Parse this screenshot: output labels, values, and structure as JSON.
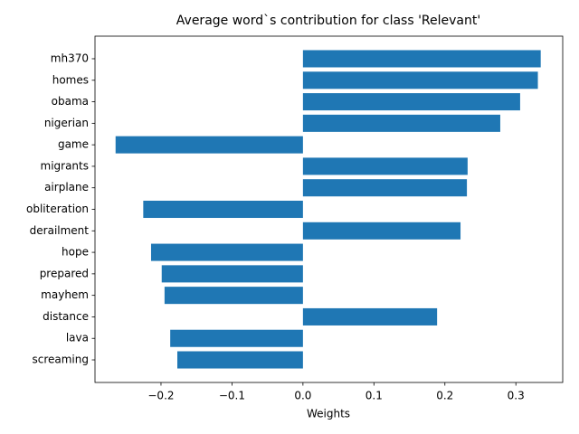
{
  "chart_data": {
    "type": "barh",
    "title": "Average word`s contribution for class 'Relevant'",
    "xlabel": "Weights",
    "categories": [
      "mh370",
      "homes",
      "obama",
      "nigerian",
      "game",
      "migrants",
      "airplane",
      "obliteration",
      "derailment",
      "hope",
      "prepared",
      "mayhem",
      "distance",
      "lava",
      "screaming"
    ],
    "values": [
      0.335,
      0.331,
      0.306,
      0.278,
      -0.264,
      0.232,
      0.231,
      -0.225,
      0.222,
      -0.214,
      -0.199,
      -0.195,
      0.189,
      -0.187,
      -0.177
    ],
    "color": "#1f77b4",
    "xlim": [
      -0.293,
      0.366
    ],
    "xticks": [
      {
        "value": -0.2,
        "label": "−0.2"
      },
      {
        "value": -0.1,
        "label": "−0.1"
      },
      {
        "value": 0,
        "label": "0.0"
      },
      0.1,
      0.2,
      0.3
    ]
  }
}
